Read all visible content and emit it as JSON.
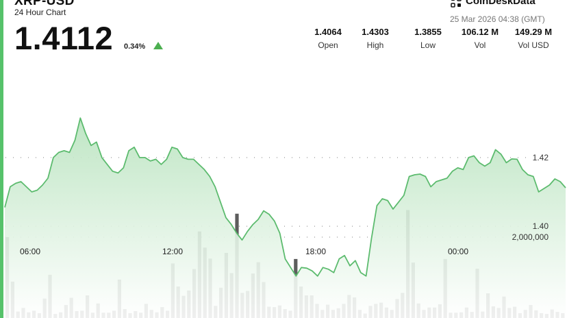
{
  "header": {
    "title": "XRP-USD",
    "subtitle": "24 Hour Chart",
    "price": "1.4112",
    "change": "0.34%",
    "brand": "CoinDeskData",
    "timestamp": "25 Mar 2026 04:38 (GMT)"
  },
  "stats": [
    {
      "value": "1.4064",
      "label": "Open"
    },
    {
      "value": "1.4303",
      "label": "High"
    },
    {
      "value": "1.3855",
      "label": "Low"
    },
    {
      "value": "106.12 M",
      "label": "Vol"
    },
    {
      "value": "149.29 M",
      "label": "Vol USD"
    }
  ],
  "colors": {
    "accent": "#56c26a",
    "line": "#5cbb6e",
    "area_top": "#b8e3be",
    "area_bottom": "#ffffff",
    "volume_bar": "#5d5d5d",
    "up_arrow": "#4caf50"
  },
  "chart_data": {
    "type": "area",
    "title": "XRP-USD",
    "subtitle": "24 Hour Chart",
    "xlabel": "",
    "ylabel": "",
    "x_ticks": [
      "06:00",
      "12:00",
      "18:00",
      "00:00"
    ],
    "y_ticks": [
      1.4,
      1.42
    ],
    "y_tick_labels": [
      "1.40",
      "1.42"
    ],
    "ylim": [
      1.3733,
      1.4495
    ],
    "grid": true,
    "legend": "none",
    "price_series": {
      "name": "XRP-USD",
      "values": [
        1.4055,
        1.4115,
        1.4125,
        1.413,
        1.4115,
        1.41,
        1.4105,
        1.412,
        1.414,
        1.42,
        1.4215,
        1.422,
        1.4215,
        1.425,
        1.4315,
        1.427,
        1.4235,
        1.4245,
        1.42,
        1.418,
        1.416,
        1.4155,
        1.417,
        1.422,
        1.423,
        1.42,
        1.42,
        1.419,
        1.4195,
        1.418,
        1.4195,
        1.423,
        1.4225,
        1.42,
        1.4195,
        1.4195,
        1.418,
        1.4165,
        1.4145,
        1.4115,
        1.407,
        1.4025,
        1.4005,
        1.398,
        1.396,
        1.3985,
        1.4005,
        1.402,
        1.4045,
        1.4035,
        1.4015,
        1.398,
        1.3905,
        1.388,
        1.3855,
        1.388,
        1.3878,
        1.387,
        1.3855,
        1.388,
        1.3875,
        1.3865,
        1.3905,
        1.3915,
        1.3885,
        1.39,
        1.3865,
        1.3855,
        1.3965,
        1.406,
        1.408,
        1.4075,
        1.405,
        1.407,
        1.409,
        1.4145,
        1.415,
        1.4152,
        1.4145,
        1.4115,
        1.413,
        1.4135,
        1.414,
        1.416,
        1.417,
        1.4165,
        1.42,
        1.4205,
        1.4185,
        1.4175,
        1.4185,
        1.4223,
        1.421,
        1.4185,
        1.4196,
        1.4195,
        1.4165,
        1.415,
        1.4145,
        1.41,
        1.411,
        1.412,
        1.4138,
        1.413,
        1.4112
      ]
    },
    "volume_series": {
      "name": "Vol",
      "y_tick_labels": [
        "2,000,000"
      ],
      "y_ticks": [
        2000000
      ],
      "values": [
        2000000,
        900000,
        160000,
        250000,
        140000,
        180000,
        120000,
        480000,
        1070000,
        100000,
        140000,
        320000,
        500000,
        170000,
        180000,
        560000,
        130000,
        360000,
        130000,
        130000,
        180000,
        950000,
        220000,
        120000,
        170000,
        130000,
        350000,
        200000,
        140000,
        270000,
        180000,
        1350000,
        780000,
        550000,
        680000,
        1210000,
        2140000,
        1740000,
        1470000,
        300000,
        750000,
        1610000,
        1110000,
        2580000,
        620000,
        670000,
        1100000,
        1380000,
        890000,
        280000,
        270000,
        310000,
        220000,
        180000,
        1460000,
        780000,
        560000,
        560000,
        350000,
        200000,
        330000,
        200000,
        240000,
        350000,
        570000,
        510000,
        200000,
        110000,
        300000,
        350000,
        380000,
        260000,
        200000,
        470000,
        620000,
        2670000,
        1370000,
        360000,
        200000,
        260000,
        260000,
        340000,
        1460000,
        130000,
        130000,
        140000,
        260000,
        150000,
        1220000,
        160000,
        610000,
        290000,
        250000,
        530000,
        250000,
        280000,
        120000,
        200000,
        320000,
        190000,
        120000,
        100000,
        210000,
        150000,
        120000
      ]
    }
  }
}
